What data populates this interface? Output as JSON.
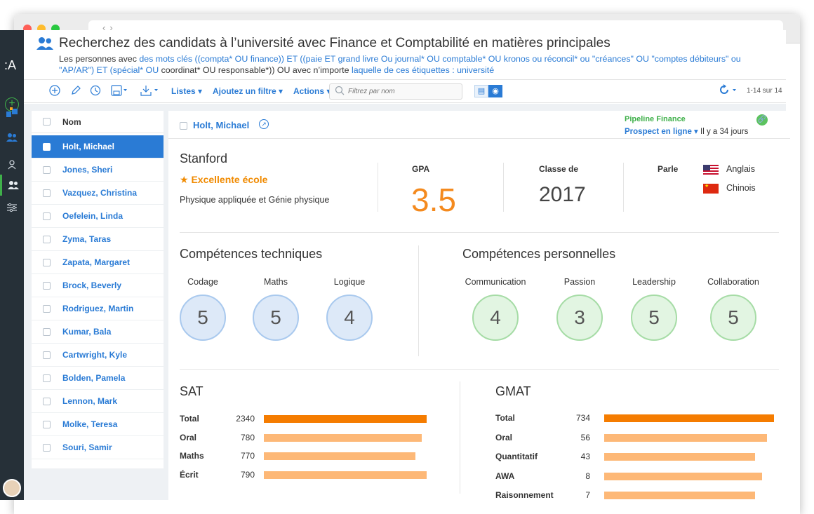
{
  "header": {
    "title": "Recherchez des candidats à l’université avec Finance et Comptabilité en matières principales",
    "desc_1": "Les personnes avec ",
    "desc_2": "des mots clés ((compta* OU finance)) ET ((paie ET grand livre Ou journal* OU comptable* OU kronos ou réconcil* ou \"créances\" OU \"comptes débiteurs\" ou \"AP/AR\") ET (spécial* OU",
    "desc_3": " coordinat* OU responsable*)) OU avec n’importe ",
    "desc_4": "laquelle de ces étiquettes : université"
  },
  "toolbar": {
    "listes": "Listes ▾",
    "filtre": "Ajoutez un filtre ▾",
    "actions": "Actions ▾",
    "search_placeholder": "Filtrez par nom",
    "count": "1-14 sur 14"
  },
  "list": {
    "header": "Nom",
    "items": [
      "Holt, Michael",
      "Jones, Sheri",
      "Vazquez, Christina",
      "Oefelein, Linda",
      "Zyma, Taras",
      "Zapata, Margaret",
      "Brock, Beverly",
      "Rodriguez, Martin",
      "Kumar, Bala",
      "Cartwright, Kyle",
      "Bolden, Pamela",
      "Lennon, Mark",
      "Molke, Teresa",
      "Souri, Samir"
    ]
  },
  "detail": {
    "name": "Holt, Michael",
    "pipeline": "Pipeline Finance",
    "prospect": "Prospect en ligne ▾",
    "since": " Il y a 34 jours",
    "school": "Stanford",
    "excellent": "★ Excellente école",
    "major": "Physique appliquée et Génie physique",
    "gpa_label": "GPA",
    "gpa": "3.5",
    "class_label": "Classe de",
    "class_year": "2017",
    "speaks_label": "Parle",
    "languages": [
      "Anglais",
      "Chinois"
    ],
    "tech_title": "Compétences techniques",
    "tech": [
      {
        "label": "Codage",
        "value": "5"
      },
      {
        "label": "Maths",
        "value": "5"
      },
      {
        "label": "Logique",
        "value": "4"
      }
    ],
    "soft_title": "Compétences personnelles",
    "soft": [
      {
        "label": "Communication",
        "value": "4"
      },
      {
        "label": "Passion",
        "value": "3"
      },
      {
        "label": "Leadership",
        "value": "5"
      },
      {
        "label": "Collaboration",
        "value": "5"
      }
    ],
    "sat_title": "SAT",
    "sat": [
      {
        "label": "Total",
        "value": "2340",
        "fraction": 1.0
      },
      {
        "label": "Oral",
        "value": "780",
        "fraction": 0.97
      },
      {
        "label": "Maths",
        "value": "770",
        "fraction": 0.93
      },
      {
        "label": "Écrit",
        "value": "790",
        "fraction": 1.0
      }
    ],
    "gmat_title": "GMAT",
    "gmat": [
      {
        "label": "Total",
        "value": "734",
        "fraction": 1.0
      },
      {
        "label": "Oral",
        "value": "56",
        "fraction": 0.96
      },
      {
        "label": "Quantitatif",
        "value": "43",
        "fraction": 0.89
      },
      {
        "label": "AWA",
        "value": "8",
        "fraction": 0.93
      },
      {
        "label": "Raisonnement",
        "value": "7",
        "fraction": 0.89
      }
    ]
  },
  "colors": {
    "accent": "#2a7bd5",
    "green": "#3fb04a",
    "orange": "#f48a1e",
    "bar_total": "#f57c00",
    "bar_sub": "#fdb877"
  },
  "icons": {
    "sidebar": [
      "logo",
      "add-icon",
      "dashboard-icon",
      "people-icon",
      "person-icon",
      "group-icon",
      "filters-icon",
      "avatar"
    ],
    "toolbar": [
      "add-circle-icon",
      "pencil-icon",
      "history-icon",
      "save-icon",
      "download-icon",
      "search-icon",
      "grid-view-icon",
      "eye-view-icon",
      "refresh-icon"
    ]
  }
}
